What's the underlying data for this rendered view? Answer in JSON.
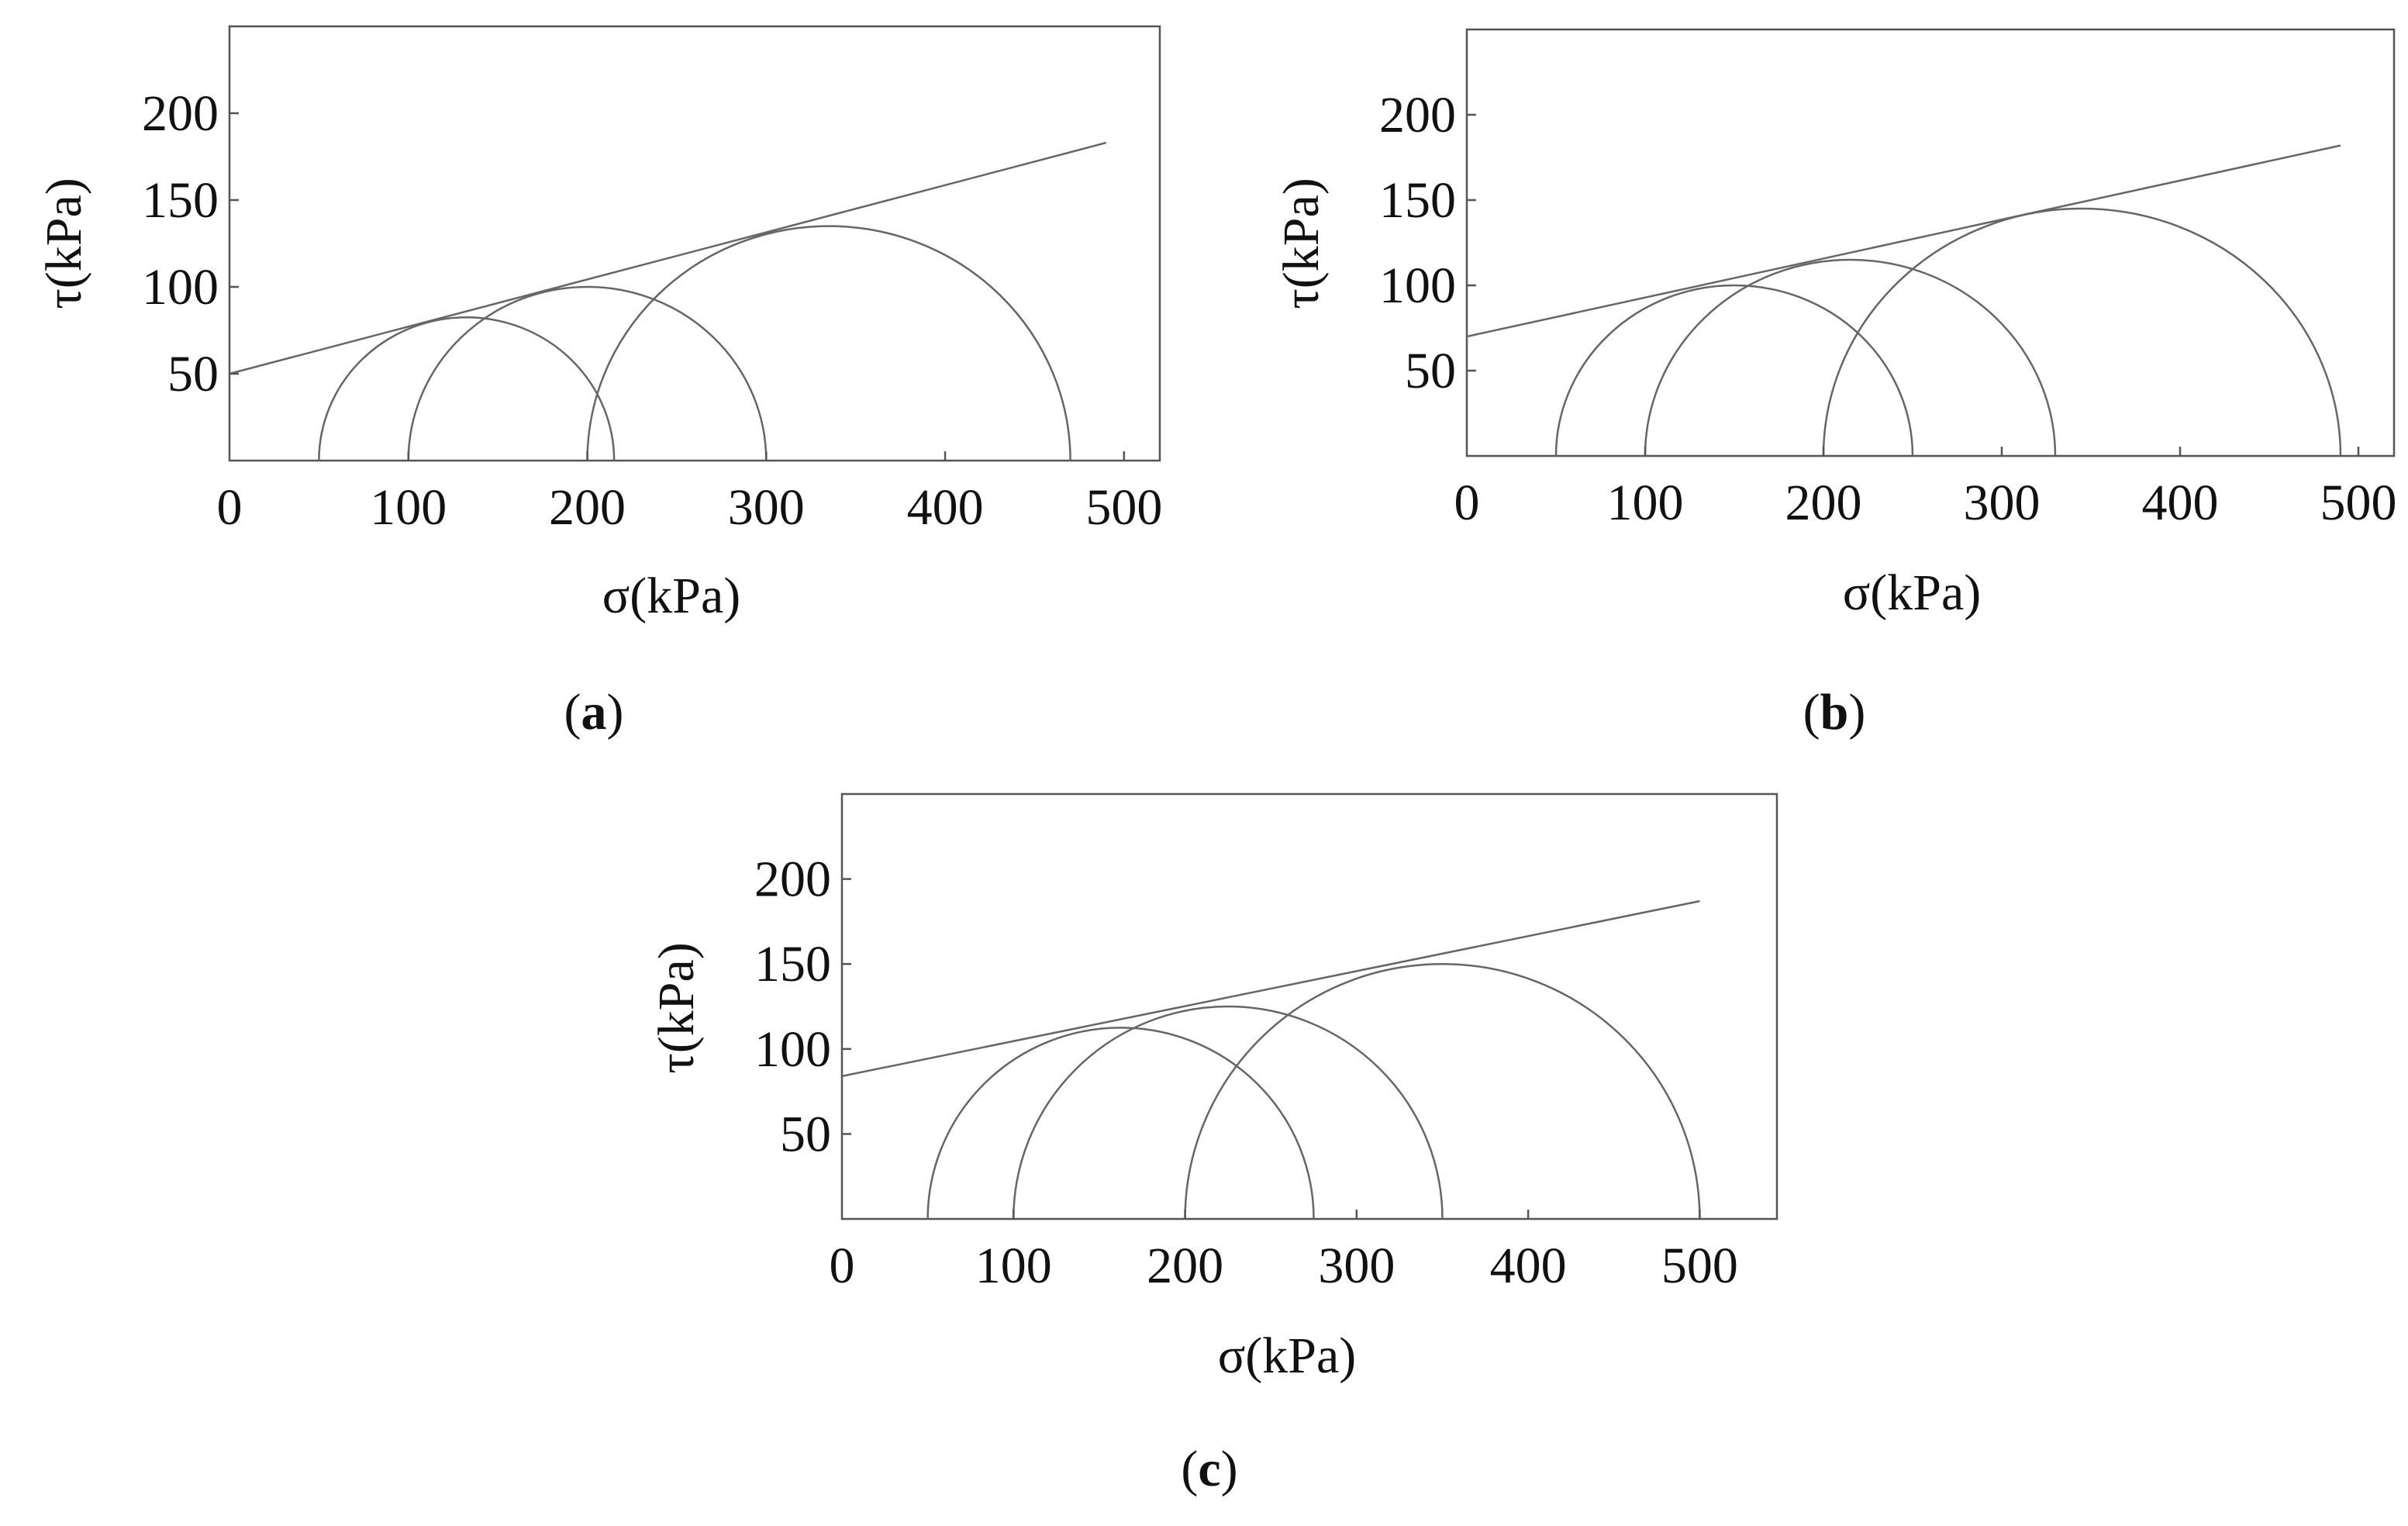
{
  "chart_data": [
    {
      "panel": "a",
      "caption": "(a)",
      "type": "line",
      "xlabel": "σ(kPa)",
      "ylabel": "τ(kPa)",
      "xlim": [
        0,
        520
      ],
      "ylim": [
        0,
        250
      ],
      "xticks": [
        0,
        100,
        200,
        300,
        400,
        500
      ],
      "yticks": [
        50,
        100,
        150,
        200
      ],
      "mohr_circles": [
        {
          "sigma3": 50,
          "sigma1": 215
        },
        {
          "sigma3": 100,
          "sigma1": 300
        },
        {
          "sigma3": 200,
          "sigma1": 470
        }
      ],
      "envelope": {
        "x": [
          0,
          490
        ],
        "y": [
          50,
          183
        ]
      }
    },
    {
      "panel": "b",
      "caption": "(b)",
      "type": "line",
      "xlabel": "σ(kPa)",
      "ylabel": "τ(kPa)",
      "xlim": [
        0,
        520
      ],
      "ylim": [
        0,
        250
      ],
      "xticks": [
        0,
        100,
        200,
        300,
        400,
        500
      ],
      "yticks": [
        50,
        100,
        150,
        200
      ],
      "mohr_circles": [
        {
          "sigma3": 50,
          "sigma1": 250
        },
        {
          "sigma3": 100,
          "sigma1": 330
        },
        {
          "sigma3": 200,
          "sigma1": 490
        }
      ],
      "envelope": {
        "x": [
          0,
          490
        ],
        "y": [
          70,
          182
        ]
      }
    },
    {
      "panel": "c",
      "caption": "(c)",
      "type": "line",
      "xlabel": "σ(kPa)",
      "ylabel": "τ(kPa)",
      "xlim": [
        0,
        545
      ],
      "ylim": [
        0,
        250
      ],
      "xticks": [
        0,
        100,
        200,
        300,
        400,
        500
      ],
      "yticks": [
        50,
        100,
        150,
        200
      ],
      "mohr_circles": [
        {
          "sigma3": 50,
          "sigma1": 275
        },
        {
          "sigma3": 100,
          "sigma1": 350
        },
        {
          "sigma3": 200,
          "sigma1": 500
        }
      ],
      "envelope": {
        "x": [
          0,
          500
        ],
        "y": [
          84,
          187
        ]
      }
    }
  ]
}
